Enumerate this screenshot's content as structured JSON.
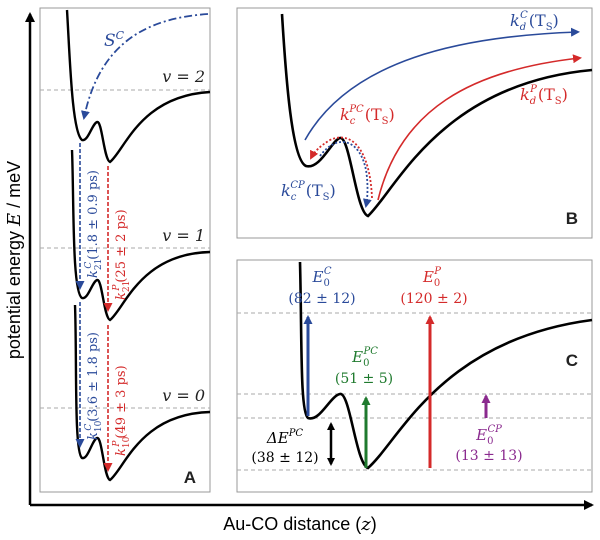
{
  "axes": {
    "ylabel_prefix": "potential energy ",
    "ylabel_var": "E",
    "ylabel_suffix": " / meV",
    "xlabel_prefix": "Au-CO distance  (",
    "xlabel_var": "z",
    "xlabel_suffix": ")"
  },
  "panelA": {
    "label": "A",
    "sc_label": "S",
    "sc_sup": "C",
    "levels": [
      "v = 2",
      "v = 1",
      "v = 0"
    ],
    "k21c_label": "k",
    "k21c_sup": "C",
    "k21c_sub": "21",
    "k21c_value": "(1.8 ± 0.9 ps)",
    "k21p_label": "k",
    "k21p_sup": "P",
    "k21p_sub": "21",
    "k21p_value": "(25 ± 2 ps)",
    "k10c_label": "k",
    "k10c_sup": "C",
    "k10c_sub": "10",
    "k10c_value": "(3.6 ± 1.8 ps)",
    "k10p_label": "k",
    "k10p_sup": "P",
    "k10p_sub": "10",
    "k10p_value": "(49 ± 3 ps)"
  },
  "panelB": {
    "label": "B",
    "kdc_k": "k",
    "kdc_sub": "d",
    "kdc_sup": "C",
    "kdp_k": "k",
    "kdp_sub": "d",
    "kdp_sup": "P",
    "kcpc_k": "k",
    "kcpc_sub": "c",
    "kcpc_sup": "PC",
    "kccp_k": "k",
    "kccp_sub": "c",
    "kccp_sup": "CP",
    "ts": "(T",
    "ts_sub": "S",
    "ts_close": ")"
  },
  "panelC": {
    "label": "C",
    "e0c_sup": "C",
    "e0c_value": "(82 ± 12)",
    "e0p_sup": "P",
    "e0p_value": "(120 ± 2)",
    "e0pc_sup": "PC",
    "e0pc_value": "(51 ± 5)",
    "e0cp_sup": "CP",
    "e0cp_value": "(13 ± 13)",
    "de_label": "ΔE",
    "de_sup": "PC",
    "de_value": "(38 ± 12)",
    "e_letter": "E",
    "e_sub": "0"
  },
  "colors": {
    "blue": "#2a4a9a",
    "red": "#d42a2a",
    "green": "#1f7a2e",
    "purple": "#8a2a8e",
    "black": "#000000",
    "dashed_gray": "#9a9a9a"
  }
}
